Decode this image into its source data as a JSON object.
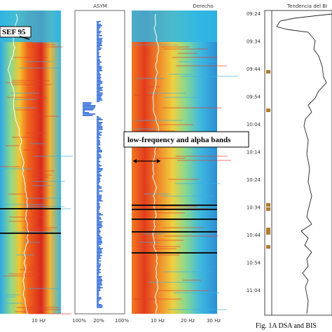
{
  "panels": {
    "left": {
      "annotation": "SEF 95",
      "x_labels": [
        "10 Hz"
      ]
    },
    "asym": {
      "title": "ASYM",
      "x_labels": [
        "100%",
        "20%",
        "100%"
      ]
    },
    "derecho": {
      "title": "Derecho",
      "annotation": "low-frequency and alpha bands",
      "x_labels": [
        "10 Hz",
        "20 Hz",
        "30 Hz"
      ]
    },
    "trend": {
      "title": "Tendencia del BI",
      "time_labels": [
        "09:24",
        "09:34",
        "09:44",
        "09:54",
        "10:04",
        "10:14",
        "10:24",
        "10:34",
        "10:44",
        "10:54",
        "11:04"
      ]
    }
  },
  "caption": "Fig. 1A  DSA and BIS"
}
